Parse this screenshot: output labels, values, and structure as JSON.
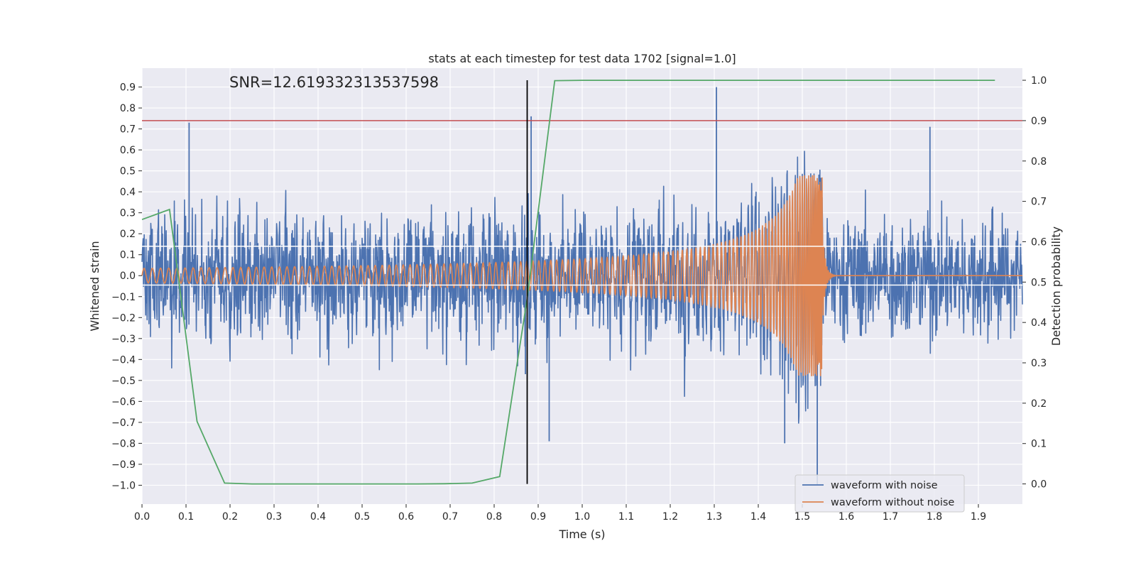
{
  "chart_data": {
    "type": "line",
    "title": "stats at each timestep for test data 1702 [signal=1.0]",
    "annotation": "SNR=12.619332313537598",
    "xlabel": "Time (s)",
    "ylabel": "Whitened strain",
    "y2label": "Detection probability",
    "xlim": [
      0.0,
      2.0
    ],
    "ylim": [
      -1.09,
      0.99
    ],
    "y2lim": [
      -0.05,
      1.03
    ],
    "x_ticks": [
      0.0,
      0.1,
      0.2,
      0.3,
      0.4,
      0.5,
      0.6,
      0.7,
      0.8,
      0.9,
      1.0,
      1.1,
      1.2,
      1.3,
      1.4,
      1.5,
      1.6,
      1.7,
      1.8,
      1.9
    ],
    "x_tick_labels": [
      "0.0",
      "0.1",
      "0.2",
      "0.3",
      "0.4",
      "0.5",
      "0.6",
      "0.7",
      "0.8",
      "0.9",
      "1.0",
      "1.1",
      "1.2",
      "1.3",
      "1.4",
      "1.5",
      "1.6",
      "1.7",
      "1.8",
      "1.9"
    ],
    "y_ticks": [
      0.9,
      0.8,
      0.7,
      0.6,
      0.5,
      0.4,
      0.3,
      0.2,
      0.1,
      0.0,
      -0.1,
      -0.2,
      -0.3,
      -0.4,
      -0.5,
      -0.6,
      -0.7,
      -0.8,
      -0.9,
      -1.0
    ],
    "y_tick_labels": [
      "0.9",
      "0.8",
      "0.7",
      "0.6",
      "0.5",
      "0.4",
      "0.3",
      "0.2",
      "0.1",
      "0.0",
      "−0.1",
      "−0.2",
      "−0.3",
      "−0.4",
      "−0.5",
      "−0.6",
      "−0.7",
      "−0.8",
      "−0.9",
      "−1.0"
    ],
    "y2_ticks": [
      1.0,
      0.9,
      0.8,
      0.7,
      0.6,
      0.5,
      0.4,
      0.3,
      0.2,
      0.1,
      0.0
    ],
    "y2_tick_labels": [
      "1.0",
      "0.9",
      "0.8",
      "0.7",
      "0.6",
      "0.5",
      "0.4",
      "0.3",
      "0.2",
      "0.1",
      "0.0"
    ],
    "threshold_probability": 0.9,
    "event_time": 0.875,
    "series": [
      {
        "name": "waveform with noise",
        "color": "#4c72b0",
        "description": "noisy whitened strain, amplitude roughly within [-1.0, 0.9] around 0.0",
        "noise_amplitude": 0.22,
        "sample_peaks": [
          [
            0.107,
            0.73
          ],
          [
            0.871,
            -0.47
          ],
          [
            0.884,
            0.76
          ],
          [
            0.925,
            -0.79
          ],
          [
            1.305,
            0.9
          ],
          [
            1.46,
            -0.8
          ],
          [
            1.534,
            -1.0
          ],
          [
            1.79,
            0.71
          ]
        ]
      },
      {
        "name": "waveform without noise",
        "color": "#dd8452",
        "description": "gravitational-wave chirp, amplitude growing from ~0.035 to ~0.48 with increasing frequency, merger at t≈1.545 s, ringdown then 0.0",
        "t_merge": 1.545,
        "start_amplitude": 0.035,
        "peak_amplitude": 0.48
      },
      {
        "name": "detection probability",
        "color": "#55a868",
        "axis": "right",
        "x": [
          0.0,
          0.0625,
          0.125,
          0.1875,
          0.25,
          0.3125,
          0.375,
          0.4375,
          0.5,
          0.5625,
          0.625,
          0.6875,
          0.75,
          0.8125,
          0.875,
          0.9375,
          1.0,
          1.0625,
          1.125,
          1.1875,
          1.25,
          1.3125,
          1.375,
          1.4375,
          1.5,
          1.5625,
          1.625,
          1.6875,
          1.75,
          1.8125,
          1.875,
          1.9375
        ],
        "values": [
          0.655,
          0.68,
          0.155,
          0.002,
          0.0,
          0.0,
          0.0,
          0.0,
          0.0,
          0.0,
          0.0,
          0.0005,
          0.002,
          0.018,
          0.46,
          0.999,
          1.0,
          1.0,
          1.0,
          1.0,
          1.0,
          1.0,
          1.0,
          1.0,
          1.0,
          1.0,
          1.0,
          1.0,
          1.0,
          1.0,
          1.0,
          1.0
        ]
      }
    ],
    "horizontal_lines": [
      {
        "axis": "right",
        "value": 0.9,
        "color": "#c44e52"
      },
      {
        "axis": "left",
        "value": 0.14,
        "color": "#ffffff"
      },
      {
        "axis": "left",
        "value": -0.045,
        "color": "#ffffff"
      }
    ],
    "legend": {
      "placement": "lower-right",
      "entries": [
        "waveform with noise",
        "waveform without noise"
      ]
    }
  }
}
